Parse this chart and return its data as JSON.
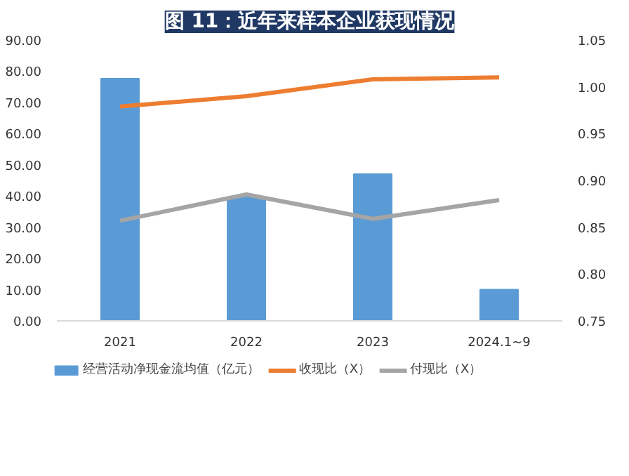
{
  "chart_data": {
    "type": "bar",
    "title": "图 11：近年来样本企业获现情况",
    "categories": [
      "2021",
      "2022",
      "2023",
      "2024.1~9"
    ],
    "series": [
      {
        "name": "经营活动净现金流均值（亿元）",
        "color": "#5b9bd5",
        "values": [
          77.6,
          39.6,
          47.0,
          10.0
        ]
      },
      {
        "name": "收现比（X）",
        "type": "line",
        "axis": "y2",
        "color": "#ed7d31",
        "values": [
          0.979,
          0.99,
          1.008,
          1.01
        ]
      },
      {
        "name": "付现比（X）",
        "type": "line",
        "axis": "y2",
        "color": "#a5a5a5",
        "values": [
          0.857,
          0.885,
          0.859,
          0.879
        ]
      }
    ],
    "ylim": [
      0,
      90
    ],
    "yticks": [
      {
        "value": 0,
        "label": "0.00"
      },
      {
        "value": 10,
        "label": "10.00"
      },
      {
        "value": 20,
        "label": "20.00"
      },
      {
        "value": 30,
        "label": "30.00"
      },
      {
        "value": 40,
        "label": "40.00"
      },
      {
        "value": 50,
        "label": "50.00"
      },
      {
        "value": 60,
        "label": "60.00"
      },
      {
        "value": 70,
        "label": "70.00"
      },
      {
        "value": 80,
        "label": "80.00"
      },
      {
        "value": 90,
        "label": "90.00"
      }
    ],
    "y2lim": [
      0.75,
      1.05
    ],
    "y2ticks": [
      0.75,
      {
        "value": 0.8,
        "label": "0.80"
      },
      0.85,
      {
        "value": 0.9,
        "label": "0.90"
      },
      0.95,
      {
        "value": 1.0,
        "label": "1.00"
      },
      1.05
    ],
    "grid": false,
    "legend": "bottom",
    "marker": "none",
    "line_style": "solid"
  }
}
